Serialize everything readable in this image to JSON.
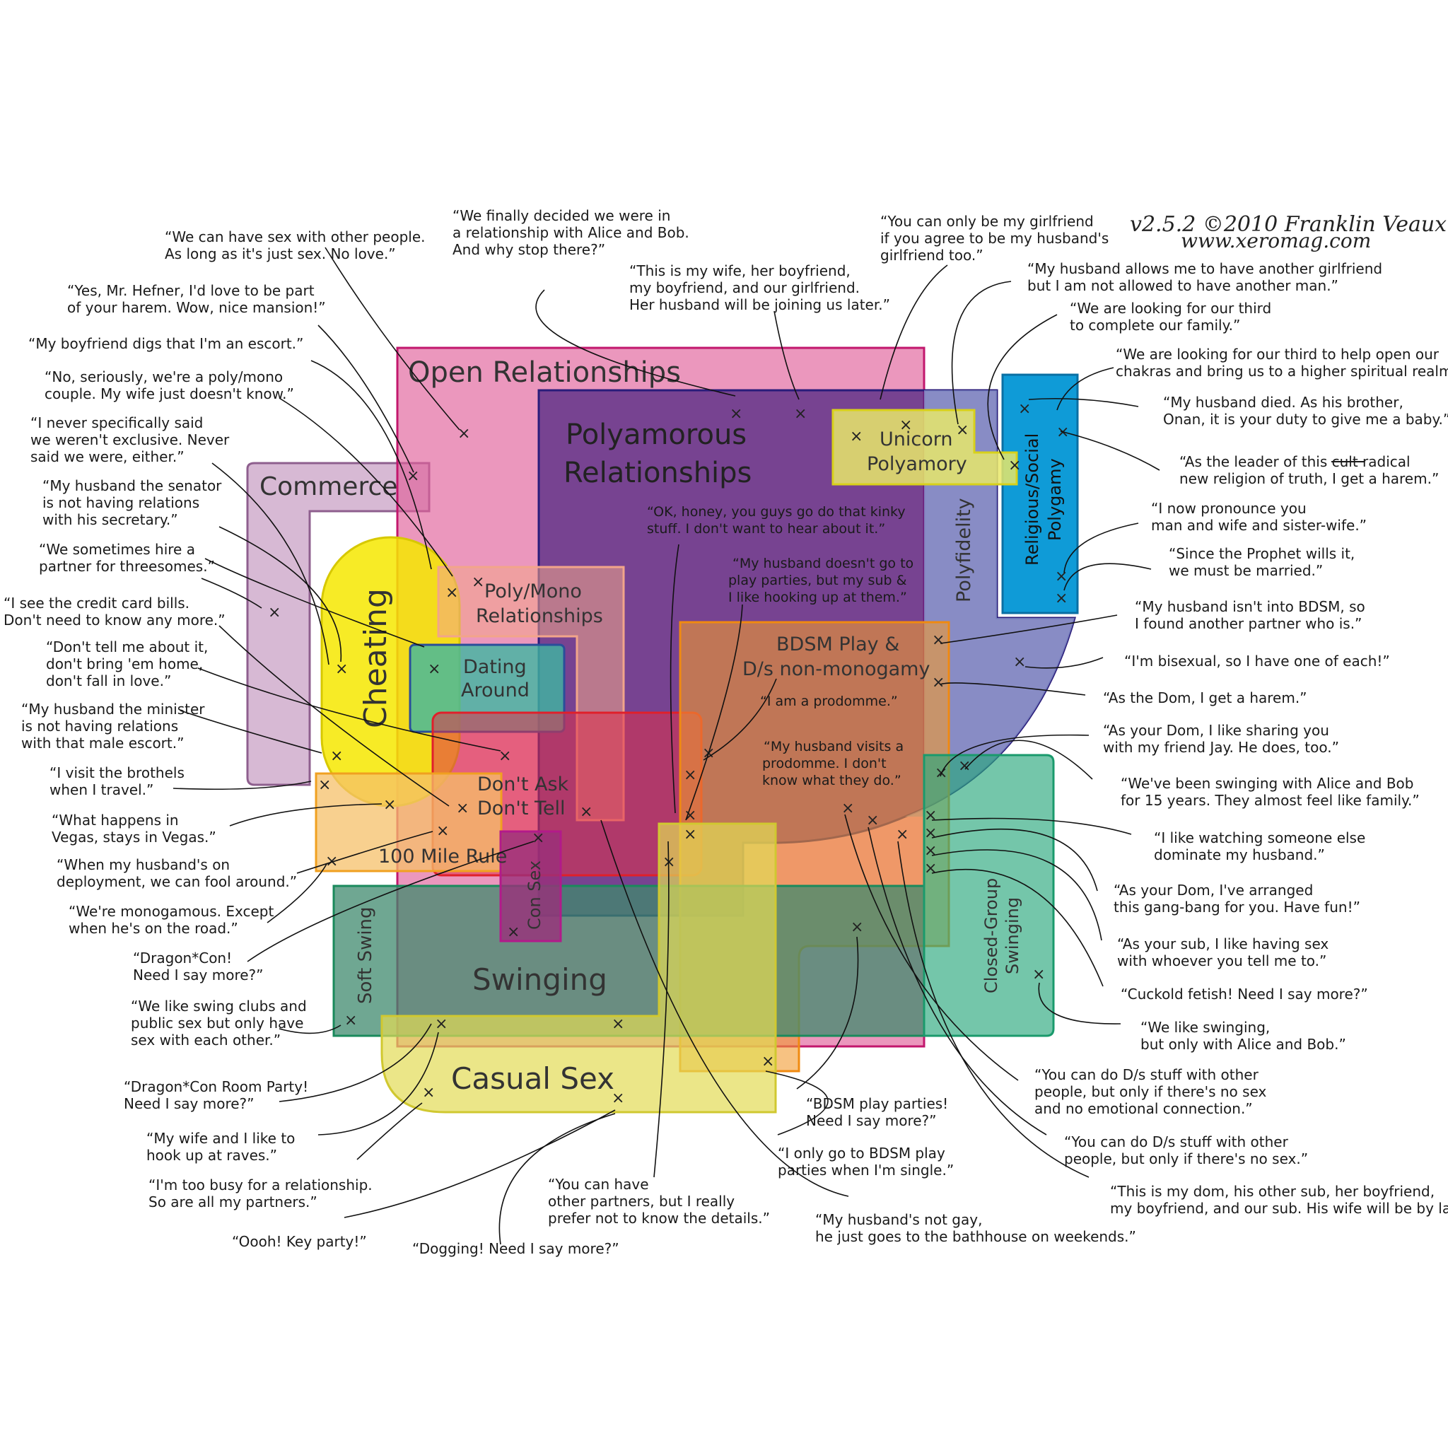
{
  "credit": {
    "version_line": "v2.5.2 ©2010 Franklin Veaux",
    "site": "www.xeromag.com"
  },
  "regions": {
    "open_relationships": "Open Relationships",
    "polyamorous": [
      "Polyamorous",
      "Relationships"
    ],
    "commerce": "Commerce",
    "cheating": "Cheating",
    "poly_mono": [
      "Poly/Mono",
      "Relationships"
    ],
    "dating_around": [
      "Dating",
      "Around"
    ],
    "dont_ask": [
      "Don't Ask",
      "Don't Tell"
    ],
    "hundred_mile": "100 Mile Rule",
    "con_sex": "Con Sex",
    "swinging": "Swinging",
    "soft_swing": "Soft Swing",
    "casual_sex": "Casual Sex",
    "bdsm": [
      "BDSM Play &",
      "D/s non-monogamy"
    ],
    "unicorn": [
      "Unicorn",
      "Polyamory"
    ],
    "polyfidelity": "Polyfidelity",
    "religious": [
      "Religious/Social",
      "Polygamy"
    ],
    "closed_group": [
      "Closed-Group",
      "Swinging"
    ]
  },
  "inner_quotes": {
    "kinky": [
      "“OK, honey, you guys go do that kinky",
      "stuff. I don't want to hear about it.”"
    ],
    "party": [
      "“My husband doesn't go to",
      "play parties, but my sub &",
      "I like hooking up at them.”"
    ],
    "prodomme": "“I am a prodomme.”",
    "visits": [
      "“My husband visits a",
      "prodomme. I don't",
      "know what they do.”"
    ]
  },
  "quotes": {
    "q_sexonly": [
      "“We can have sex with other people.",
      "As long as it's just sex. No love.”"
    ],
    "q_hefner": [
      "“Yes, Mr. Hefner, I'd love to be part",
      "of your harem. Wow, nice mansion!”"
    ],
    "q_escort": [
      "“My boyfriend digs that I'm an escort.”"
    ],
    "q_polymono": [
      "“No, seriously, we're a poly/mono",
      "couple. My wife just doesn't know.”"
    ],
    "q_never": [
      "“I never specifically said",
      "we weren't exclusive. Never",
      "said we were, either.”"
    ],
    "q_senator": [
      "“My husband the senator",
      "is not having relations",
      "with his secretary.”"
    ],
    "q_threesome": [
      "“We sometimes hire a",
      "partner for threesomes.”"
    ],
    "q_credit": [
      "“I see the credit card bills.",
      "Don't need to know any more.”"
    ],
    "q_donttell": [
      "“Don't tell me about it,",
      "don't bring 'em home,",
      "don't fall in love.”"
    ],
    "q_minister": [
      "“My husband the minister",
      "is not having relations",
      "with that male escort.”"
    ],
    "q_brothels": [
      "“I visit the brothels",
      "when I travel.”"
    ],
    "q_vegas": [
      "“What happens in",
      "Vegas, stays in Vegas.”"
    ],
    "q_deploy": [
      "“When my husband's on",
      "deployment, we can fool around.”"
    ],
    "q_road": [
      "“We're monogamous. Except",
      "when he's on the road.”"
    ],
    "q_dragoncon": [
      "“Dragon*Con!",
      "Need I say more?”"
    ],
    "q_swingclubs": [
      "“We like swing clubs and",
      "public sex but only have",
      "sex with each other.”"
    ],
    "q_roomparty": [
      "“Dragon*Con Room Party!",
      "Need I say more?”"
    ],
    "q_raves": [
      "“My wife and I like to",
      "hook up at raves.”"
    ],
    "q_busy": [
      "“I'm too busy for a relationship.",
      "So are all my partners.”"
    ],
    "q_keyparty": [
      "“Oooh! Key party!”"
    ],
    "q_dogging": [
      "“Dogging! Need I say more?”"
    ],
    "q_details": [
      "“You can have",
      "other partners, but I really",
      "prefer not to know the details.”"
    ],
    "q_bathhouse": [
      "“My husband's not gay,",
      "he just goes to the bathhouse on weekends.”"
    ],
    "q_single": [
      "“I only go to BDSM play",
      "parties when I'm single.”"
    ],
    "q_bdsmparties": [
      "“BDSM play parties!",
      "Need I say more?”"
    ],
    "q_alicebob": [
      "“We finally decided we were in",
      "a relationship with Alice and Bob.",
      "And why stop there?”"
    ],
    "q_thisiswife": [
      "“This is my wife, her boyfriend,",
      "my boyfriend, and our girlfriend.",
      "Her husband will be joining us later.”"
    ],
    "q_unicorn": [
      "“You can only be my girlfriend",
      "if you agree to be my husband's",
      "girlfriend too.”"
    ],
    "q_allows": [
      "“My husband allows me to have another girlfriend",
      "but I am not allowed to have another man.”"
    ],
    "q_third": [
      "“We are looking for our third",
      "to complete our family.”"
    ],
    "q_chakras": [
      "“We are looking for our third to help open our",
      "chakras and bring us to a higher spiritual realm.”"
    ],
    "q_onan": [
      "“My husband died. As his brother,",
      "Onan, it is your duty to give me a baby.”"
    ],
    "q_cult": [
      "“As the leader of this cult radical",
      "new religion of truth, I get a harem.”"
    ],
    "q_sisterwife": [
      "“I now pronounce you",
      "man and wife and sister-wife.”"
    ],
    "q_prophet": [
      "“Since the Prophet wills it,",
      "we must be married.”"
    ],
    "q_notbdsm": [
      "“My husband isn't into BDSM, so",
      "I found another partner who is.”"
    ],
    "q_bisexual": [
      "“I'm bisexual, so I have one of each!”"
    ],
    "q_domharem": [
      "“As the Dom, I get a harem.”"
    ],
    "q_jay": [
      "“As your Dom, I like sharing you",
      "with my friend Jay. He does, too.”"
    ],
    "q_15years": [
      "“We've been swinging with Alice and Bob",
      "for 15 years. They almost feel like family.”"
    ],
    "q_dominate": [
      "“I like watching someone else",
      "dominate my husband.”"
    ],
    "q_gangbang": [
      "“As your Dom, I've arranged",
      "this gang-bang for you. Have fun!”"
    ],
    "q_sub": [
      "“As your sub, I like having sex",
      "with whoever you tell me to.”"
    ],
    "q_cuckold": [
      "“Cuckold fetish! Need I say more?”"
    ],
    "q_onlyalice": [
      "“We like swinging,",
      "but only with Alice and Bob.”"
    ],
    "q_dsnoconn": [
      "“You can do D/s stuff with other",
      "people, but only if there's no sex",
      "and no emotional connection.”"
    ],
    "q_dsnosex": [
      "“You can do D/s stuff with other",
      "people, but only if there's no sex.”"
    ],
    "q_mydom": [
      "“This is my dom, his other sub, her boyfriend,",
      "my boyfriend, and our sub. His wife will be by later.”"
    ]
  },
  "colors": {
    "open": "#e0609a",
    "poly": "#5b2c8f",
    "commerce": "#c9a2c6",
    "cheating": "#f6e800",
    "swing": "#2aa77c",
    "casual": "#e2dc55",
    "bdsm": "#f29a2e",
    "religious": "#0f9bd7",
    "unicorn": "#e8e86a"
  }
}
